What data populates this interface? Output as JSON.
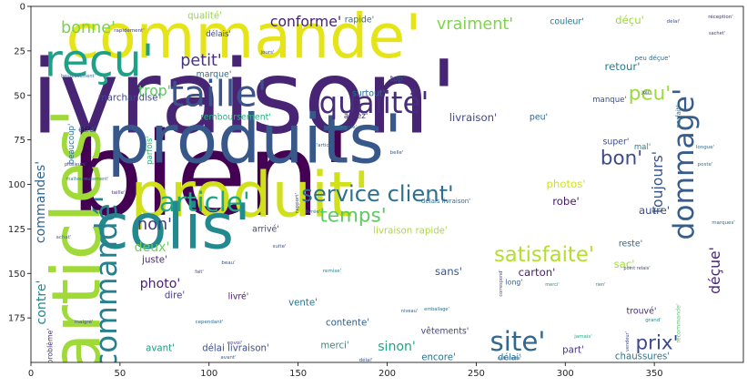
{
  "chart_data": {
    "type": "wordcloud",
    "title": "",
    "xlabel": "",
    "ylabel": "",
    "xlim": [
      0,
      400
    ],
    "ylim": [
      200,
      0
    ],
    "xticks": [
      0,
      50,
      100,
      150,
      200,
      250,
      300,
      350
    ],
    "yticks": [
      0,
      25,
      50,
      75,
      100,
      125,
      150,
      175
    ],
    "grid": false,
    "words": [
      {
        "text": "commande'",
        "x": 268,
        "y": 40,
        "size": 0.17,
        "rotate": 0,
        "color": "#e5e419"
      },
      {
        "text": "livraison'",
        "x": 253,
        "y": 108,
        "size": 0.285,
        "rotate": 0,
        "color": "#482475"
      },
      {
        "text": "bien'",
        "x": 232,
        "y": 192,
        "size": 0.325,
        "rotate": 0,
        "color": "#440154"
      },
      {
        "text": "produits'",
        "x": 280,
        "y": 153,
        "size": 0.19,
        "rotate": 0,
        "color": "#38588c"
      },
      {
        "text": "produit'",
        "x": 275,
        "y": 215,
        "size": 0.175,
        "rotate": 0,
        "color": "#d0e11c"
      },
      {
        "text": "colis'",
        "x": 190,
        "y": 250,
        "size": 0.175,
        "rotate": 0,
        "color": "#23898e"
      },
      {
        "text": "reçu'",
        "x": 109,
        "y": 67,
        "size": 0.125,
        "rotate": 0,
        "color": "#1fa187"
      },
      {
        "text": "taille'",
        "x": 240,
        "y": 104,
        "size": 0.1,
        "rotate": 0,
        "color": "#3b528b"
      },
      {
        "text": "qualité'",
        "x": 411,
        "y": 113,
        "size": 0.083,
        "rotate": 0,
        "color": "#472d7b"
      },
      {
        "text": "articles'",
        "x": 84,
        "y": 265,
        "size": 0.19,
        "rotate": -90,
        "color": "#a0da39"
      },
      {
        "text": "article'",
        "x": 225,
        "y": 222,
        "size": 0.075,
        "rotate": 0,
        "color": "#20a486"
      },
      {
        "text": "service client'",
        "x": 415,
        "y": 213,
        "size": 0.062,
        "rotate": 0,
        "color": "#2c728e"
      },
      {
        "text": "dommage'",
        "x": 752,
        "y": 180,
        "size": 0.08,
        "rotate": -90,
        "color": "#365d8d"
      },
      {
        "text": "satisfaite'",
        "x": 598,
        "y": 280,
        "size": 0.058,
        "rotate": 0,
        "color": "#b5de2b"
      },
      {
        "text": "site'",
        "x": 569,
        "y": 375,
        "size": 0.075,
        "rotate": 0,
        "color": "#31688e"
      },
      {
        "text": "prix'",
        "x": 722,
        "y": 377,
        "size": 0.055,
        "rotate": 0,
        "color": "#3e4989"
      },
      {
        "text": "commandé'",
        "x": 117,
        "y": 310,
        "size": 0.083,
        "rotate": -90,
        "color": "#27808e"
      },
      {
        "text": "peu'",
        "x": 714,
        "y": 103,
        "size": 0.055,
        "rotate": 0,
        "color": "#9bd93c"
      },
      {
        "text": "bon'",
        "x": 683,
        "y": 174,
        "size": 0.055,
        "rotate": 0,
        "color": "#3e4a89"
      },
      {
        "text": "temps'",
        "x": 388,
        "y": 237,
        "size": 0.055,
        "rotate": 0,
        "color": "#5ec962"
      },
      {
        "text": "non'",
        "x": 170,
        "y": 247,
        "size": 0.045,
        "rotate": 0,
        "color": "#443983"
      },
      {
        "text": "bonne'",
        "x": 97,
        "y": 31,
        "size": 0.045,
        "rotate": 0,
        "color": "#7ad151"
      },
      {
        "text": "conforme'",
        "x": 336,
        "y": 24,
        "size": 0.04,
        "rotate": 0,
        "color": "#482173"
      },
      {
        "text": "vraiment'",
        "x": 522,
        "y": 27,
        "size": 0.045,
        "rotate": 0,
        "color": "#7fd34e"
      },
      {
        "text": "petit'",
        "x": 221,
        "y": 67,
        "size": 0.045,
        "rotate": 0,
        "color": "#46337f"
      },
      {
        "text": "trop'",
        "x": 170,
        "y": 100,
        "size": 0.04,
        "rotate": 0,
        "color": "#5cc863"
      },
      {
        "text": "marchandise'",
        "x": 142,
        "y": 108,
        "size": 0.026,
        "rotate": 0,
        "color": "#3f4889"
      },
      {
        "text": "commandes'",
        "x": 45,
        "y": 222,
        "size": 0.036,
        "rotate": -90,
        "color": "#32658e"
      },
      {
        "text": "deux'",
        "x": 167,
        "y": 272,
        "size": 0.036,
        "rotate": 0,
        "color": "#6ece58"
      },
      {
        "text": "contre'",
        "x": 46,
        "y": 332,
        "size": 0.036,
        "rotate": -90,
        "color": "#24878e"
      },
      {
        "text": "photo'",
        "x": 176,
        "y": 312,
        "size": 0.036,
        "rotate": 0,
        "color": "#481f70"
      },
      {
        "text": "toujours'",
        "x": 723,
        "y": 200,
        "size": 0.04,
        "rotate": -90,
        "color": "#3a548c"
      },
      {
        "text": "déçue'",
        "x": 786,
        "y": 297,
        "size": 0.04,
        "rotate": -90,
        "color": "#482576"
      },
      {
        "text": "déçu'",
        "x": 692,
        "y": 22,
        "size": 0.03,
        "rotate": 0,
        "color": "#9fda3a"
      },
      {
        "text": "livraison rapide'",
        "x": 451,
        "y": 254,
        "size": 0.026,
        "rotate": 0,
        "color": "#addc30"
      },
      {
        "text": "sans'",
        "x": 493,
        "y": 298,
        "size": 0.03,
        "rotate": 0,
        "color": "#39568c"
      },
      {
        "text": "livraison'",
        "x": 520,
        "y": 129,
        "size": 0.03,
        "rotate": 0,
        "color": "#3e4a89"
      },
      {
        "text": "qualité'",
        "x": 225,
        "y": 18,
        "size": 0.026,
        "rotate": 0,
        "color": "#98d83e"
      },
      {
        "text": "rapide'",
        "x": 395,
        "y": 22,
        "size": 0.024,
        "rotate": 0,
        "color": "#2d718e"
      },
      {
        "text": "couleur'",
        "x": 623,
        "y": 24,
        "size": 0.024,
        "rotate": 0,
        "color": "#2a768e"
      },
      {
        "text": "retour'",
        "x": 684,
        "y": 73,
        "size": 0.03,
        "rotate": 0,
        "color": "#287c8e"
      },
      {
        "text": "photos'",
        "x": 622,
        "y": 202,
        "size": 0.03,
        "rotate": 0,
        "color": "#d2e21b"
      },
      {
        "text": "robe'",
        "x": 622,
        "y": 221,
        "size": 0.03,
        "rotate": 0,
        "color": "#481668"
      },
      {
        "text": "autre'",
        "x": 719,
        "y": 231,
        "size": 0.03,
        "rotate": 0,
        "color": "#3d4d8a"
      },
      {
        "text": "reste'",
        "x": 693,
        "y": 268,
        "size": 0.024,
        "rotate": 0,
        "color": "#31678e"
      },
      {
        "text": "sac'",
        "x": 686,
        "y": 290,
        "size": 0.03,
        "rotate": 0,
        "color": "#a5db36"
      },
      {
        "text": "carton'",
        "x": 590,
        "y": 299,
        "size": 0.03,
        "rotate": 0,
        "color": "#481b6d"
      },
      {
        "text": "juste'",
        "x": 170,
        "y": 286,
        "size": 0.026,
        "rotate": 0,
        "color": "#482878"
      },
      {
        "text": "dire'",
        "x": 192,
        "y": 325,
        "size": 0.026,
        "rotate": 0,
        "color": "#453882"
      },
      {
        "text": "livré'",
        "x": 262,
        "y": 326,
        "size": 0.024,
        "rotate": 0,
        "color": "#481a6c"
      },
      {
        "text": "vente'",
        "x": 333,
        "y": 333,
        "size": 0.026,
        "rotate": 0,
        "color": "#2c718e"
      },
      {
        "text": "contente'",
        "x": 382,
        "y": 355,
        "size": 0.026,
        "rotate": 0,
        "color": "#34618d"
      },
      {
        "text": "merci'",
        "x": 368,
        "y": 380,
        "size": 0.026,
        "rotate": 0,
        "color": "#21918c"
      },
      {
        "text": "sinon'",
        "x": 436,
        "y": 381,
        "size": 0.036,
        "rotate": 0,
        "color": "#20a386"
      },
      {
        "text": "délai livraison'",
        "x": 259,
        "y": 383,
        "size": 0.026,
        "rotate": 0,
        "color": "#3c4f8a"
      },
      {
        "text": "avant'",
        "x": 176,
        "y": 383,
        "size": 0.026,
        "rotate": 0,
        "color": "#1f9a8a"
      },
      {
        "text": "vêtements'",
        "x": 489,
        "y": 364,
        "size": 0.024,
        "rotate": 0,
        "color": "#404588"
      },
      {
        "text": "encore'",
        "x": 482,
        "y": 393,
        "size": 0.026,
        "rotate": 0,
        "color": "#2d708e"
      },
      {
        "text": "délai'",
        "x": 560,
        "y": 393,
        "size": 0.024,
        "rotate": 0,
        "color": "#2e6e8e"
      },
      {
        "text": "part'",
        "x": 630,
        "y": 385,
        "size": 0.026,
        "rotate": 0,
        "color": "#453581"
      },
      {
        "text": "chaussures'",
        "x": 706,
        "y": 392,
        "size": 0.026,
        "rotate": 0,
        "color": "#2a778e"
      },
      {
        "text": "trouvé'",
        "x": 705,
        "y": 342,
        "size": 0.024,
        "rotate": 0,
        "color": "#472a7a"
      },
      {
        "text": "marque'",
        "x": 235,
        "y": 82,
        "size": 0.024,
        "rotate": 0,
        "color": "#2e6d8e"
      },
      {
        "text": "délais'",
        "x": 240,
        "y": 38,
        "size": 0.022,
        "rotate": 0,
        "color": "#3f4788"
      },
      {
        "text": "surtout'",
        "x": 405,
        "y": 103,
        "size": 0.024,
        "rotate": 0,
        "color": "#2f6b8e"
      },
      {
        "text": "assez'",
        "x": 391,
        "y": 128,
        "size": 0.022,
        "rotate": 0,
        "color": "#472e7c"
      },
      {
        "text": "remboursement'",
        "x": 259,
        "y": 129,
        "size": 0.024,
        "rotate": 0,
        "color": "#2ab07f"
      },
      {
        "text": "peu'",
        "x": 592,
        "y": 129,
        "size": 0.024,
        "rotate": 0,
        "color": "#33638d"
      },
      {
        "text": "top'",
        "x": 437,
        "y": 87,
        "size": 0.022,
        "rotate": 0,
        "color": "#3b518b"
      },
      {
        "text": "manque'",
        "x": 670,
        "y": 110,
        "size": 0.022,
        "rotate": 0,
        "color": "#3a538b"
      },
      {
        "text": "super'",
        "x": 677,
        "y": 156,
        "size": 0.024,
        "rotate": 0,
        "color": "#3c508b"
      },
      {
        "text": "mal'",
        "x": 706,
        "y": 162,
        "size": 0.022,
        "rotate": 0,
        "color": "#24868e"
      },
      {
        "text": "arrivé'",
        "x": 292,
        "y": 252,
        "size": 0.024,
        "rotate": 0,
        "color": "#3f4788"
      },
      {
        "text": "être'",
        "x": 96,
        "y": 143,
        "size": 0.022,
        "rotate": 0,
        "color": "#3b528b"
      },
      {
        "text": "beaucoup'",
        "x": 79,
        "y": 158,
        "size": 0.022,
        "rotate": -90,
        "color": "#2e6f8e"
      },
      {
        "text": "parfois'",
        "x": 165,
        "y": 165,
        "size": 0.022,
        "rotate": -90,
        "color": "#2fb47c"
      },
      {
        "text": "problème'",
        "x": 55,
        "y": 380,
        "size": 0.02,
        "rotate": -90,
        "color": "#46327e"
      },
      {
        "text": "peu déçue'",
        "x": 717,
        "y": 64,
        "size": 0.018,
        "rotate": 0,
        "color": "#2f6c8e"
      },
      {
        "text": "parfait'",
        "x": 746,
        "y": 128,
        "size": 0.018,
        "rotate": -90,
        "color": "#2b748e"
      },
      {
        "text": "long'",
        "x": 565,
        "y": 310,
        "size": 0.02,
        "rotate": 0,
        "color": "#34618d"
      },
      {
        "text": "délais livraison'",
        "x": 490,
        "y": 221,
        "size": 0.018,
        "rotate": 0,
        "color": "#31668e"
      },
      {
        "text": "recommande'",
        "x": 746,
        "y": 355,
        "size": 0.016,
        "rotate": -90,
        "color": "#50c46a"
      },
      {
        "text": "rapidement'",
        "x": 142,
        "y": 34,
        "size": 0.014,
        "rotate": 0,
        "color": "#424086"
      },
      {
        "text": "réception'",
        "x": 792,
        "y": 19,
        "size": 0.014,
        "rotate": 0,
        "color": "#46307e"
      },
      {
        "text": "délai'",
        "x": 740,
        "y": 24,
        "size": 0.014,
        "rotate": 0,
        "color": "#3b528b"
      },
      {
        "text": "jours'",
        "x": 294,
        "y": 58,
        "size": 0.014,
        "rotate": 0,
        "color": "#3e4a89"
      },
      {
        "text": "malgré'",
        "x": 92,
        "y": 354,
        "size": 0.014,
        "rotate": 0,
        "color": "#3e4989"
      },
      {
        "text": "cependant'",
        "x": 230,
        "y": 354,
        "size": 0.014,
        "rotate": 0,
        "color": "#2f6c8e"
      },
      {
        "text": "grand'",
        "x": 718,
        "y": 352,
        "size": 0.014,
        "rotate": 0,
        "color": "#24878e"
      },
      {
        "text": "marques'",
        "x": 795,
        "y": 245,
        "size": 0.014,
        "rotate": 0,
        "color": "#2d718e"
      },
      {
        "text": "taille'",
        "x": 130,
        "y": 212,
        "size": 0.014,
        "rotate": 0,
        "color": "#453781"
      },
      {
        "text": "satisfaite'",
        "x": 560,
        "y": 394,
        "size": 0.014,
        "rotate": 0,
        "color": "#31688e"
      },
      {
        "text": "avant'",
        "x": 251,
        "y": 393,
        "size": 0.014,
        "rotate": 0,
        "color": "#33638d"
      },
      {
        "text": "délai'",
        "x": 402,
        "y": 396,
        "size": 0.014,
        "rotate": 0,
        "color": "#3a548c"
      },
      {
        "text": "jamais'",
        "x": 641,
        "y": 370,
        "size": 0.014,
        "rotate": 0,
        "color": "#22a884"
      },
      {
        "text": "belle'",
        "x": 436,
        "y": 168,
        "size": 0.014,
        "rotate": 0,
        "color": "#39568c"
      },
      {
        "text": "longue'",
        "x": 775,
        "y": 162,
        "size": 0.014,
        "rotate": 0,
        "color": "#31688e"
      },
      {
        "text": "l'article'",
        "x": 357,
        "y": 160,
        "size": 0.014,
        "rotate": 0,
        "color": "#32658e"
      },
      {
        "text": "poste'",
        "x": 775,
        "y": 181,
        "size": 0.014,
        "rotate": 0,
        "color": "#287d8e"
      },
      {
        "text": "manque'",
        "x": 380,
        "y": 140,
        "size": 0.014,
        "rotate": 0,
        "color": "#2f6b8e"
      },
      {
        "text": "joli'",
        "x": 710,
        "y": 102,
        "size": 0.014,
        "rotate": 0,
        "color": "#3d4e8a"
      },
      {
        "text": "beau'",
        "x": 251,
        "y": 289,
        "size": 0.014,
        "rotate": 0,
        "color": "#39568c"
      },
      {
        "text": "livrée'",
        "x": 344,
        "y": 233,
        "size": 0.014,
        "rotate": 0,
        "color": "#2a778e"
      },
      {
        "text": "envoi'",
        "x": 258,
        "y": 377,
        "size": 0.014,
        "rotate": 0,
        "color": "#453882"
      },
      {
        "text": "remise'",
        "x": 365,
        "y": 298,
        "size": 0.014,
        "rotate": 0,
        "color": "#27808e"
      },
      {
        "text": "rapport'",
        "x": 327,
        "y": 223,
        "size": 0.014,
        "rotate": -90,
        "color": "#3e4989"
      },
      {
        "text": "suite'",
        "x": 307,
        "y": 271,
        "size": 0.014,
        "rotate": 0,
        "color": "#3a538b"
      },
      {
        "text": "achat'",
        "x": 70,
        "y": 261,
        "size": 0.014,
        "rotate": 0,
        "color": "#2c728e"
      },
      {
        "text": "heureusement'",
        "x": 86,
        "y": 84,
        "size": 0.012,
        "rotate": 0,
        "color": "#31678e"
      },
      {
        "text": "plusieurs'",
        "x": 83,
        "y": 181,
        "size": 0.012,
        "rotate": 0,
        "color": "#3e4a89"
      },
      {
        "text": "malheureusement'",
        "x": 96,
        "y": 197,
        "size": 0.012,
        "rotate": 0,
        "color": "#26828e"
      },
      {
        "text": "sachet'",
        "x": 788,
        "y": 37,
        "size": 0.012,
        "rotate": 0,
        "color": "#433e85"
      },
      {
        "text": "point relais'",
        "x": 700,
        "y": 295,
        "size": 0.012,
        "rotate": 0,
        "color": "#3e4a89"
      },
      {
        "text": "rien'",
        "x": 660,
        "y": 313,
        "size": 0.012,
        "rotate": 0,
        "color": "#23898e"
      },
      {
        "text": "merci'",
        "x": 607,
        "y": 313,
        "size": 0.012,
        "rotate": 0,
        "color": "#20928c"
      },
      {
        "text": "vendeur'",
        "x": 690,
        "y": 375,
        "size": 0.012,
        "rotate": -90,
        "color": "#3d4e8a"
      },
      {
        "text": "niveau'",
        "x": 450,
        "y": 342,
        "size": 0.012,
        "rotate": 0,
        "color": "#375a8c"
      },
      {
        "text": "emballage'",
        "x": 480,
        "y": 340,
        "size": 0.012,
        "rotate": 0,
        "color": "#2c728e"
      },
      {
        "text": "correspond'",
        "x": 551,
        "y": 311,
        "size": 0.012,
        "rotate": -90,
        "color": "#3c4f8a"
      },
      {
        "text": "fait'",
        "x": 219,
        "y": 299,
        "size": 0.012,
        "rotate": 0,
        "color": "#3e4989"
      }
    ]
  }
}
